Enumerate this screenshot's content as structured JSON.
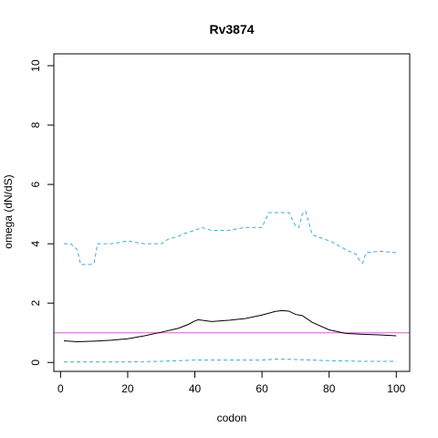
{
  "chart_data": {
    "type": "line",
    "title": "Rv3874",
    "xlabel": "codon",
    "ylabel": "omega (dN/dS)",
    "xlim": [
      -2,
      104
    ],
    "ylim": [
      -0.3,
      10.4
    ],
    "x_ticks": [
      0,
      20,
      40,
      60,
      80,
      100
    ],
    "y_ticks": [
      0,
      2,
      4,
      6,
      8,
      10
    ],
    "grid": false,
    "reference_line": {
      "y": 1,
      "color": "#cc66cc"
    },
    "series": [
      {
        "style": "solid",
        "color": "#000000",
        "x": [
          1,
          5,
          10,
          15,
          20,
          25,
          30,
          35,
          38,
          40,
          41,
          45,
          50,
          55,
          60,
          64,
          66,
          68,
          70,
          72,
          75,
          80,
          85,
          90,
          95,
          100
        ],
        "y": [
          0.73,
          0.7,
          0.72,
          0.75,
          0.8,
          0.9,
          1.02,
          1.15,
          1.28,
          1.4,
          1.44,
          1.38,
          1.42,
          1.48,
          1.6,
          1.72,
          1.75,
          1.73,
          1.62,
          1.58,
          1.35,
          1.1,
          0.98,
          0.95,
          0.93,
          0.9
        ]
      },
      {
        "style": "dashed",
        "color": "#3fa9dc",
        "x": [
          1,
          3,
          5,
          6,
          7,
          8,
          9,
          10,
          11,
          12,
          15,
          18,
          20,
          22,
          25,
          30,
          32,
          35,
          37,
          40,
          42,
          45,
          50,
          55,
          60,
          61,
          62,
          65,
          68,
          70,
          71,
          72,
          73,
          75,
          80,
          81,
          85,
          88,
          89,
          90,
          91,
          95,
          100
        ],
        "y": [
          4.0,
          4.0,
          3.8,
          3.3,
          3.3,
          3.3,
          3.3,
          3.35,
          4.0,
          4.0,
          4.0,
          4.05,
          4.1,
          4.05,
          4.0,
          4.0,
          4.15,
          4.25,
          4.35,
          4.45,
          4.55,
          4.45,
          4.45,
          4.55,
          4.55,
          4.8,
          5.05,
          5.05,
          5.05,
          4.6,
          4.55,
          5.0,
          5.1,
          4.3,
          4.1,
          4.05,
          3.8,
          3.65,
          3.45,
          3.35,
          3.7,
          3.75,
          3.7
        ]
      },
      {
        "style": "dashed",
        "color": "#3fa9dc",
        "x": [
          1,
          10,
          20,
          30,
          40,
          50,
          60,
          65,
          70,
          80,
          90,
          100
        ],
        "y": [
          0.02,
          0.02,
          0.02,
          0.04,
          0.08,
          0.08,
          0.08,
          0.12,
          0.1,
          0.06,
          0.04,
          0.04
        ]
      }
    ]
  }
}
